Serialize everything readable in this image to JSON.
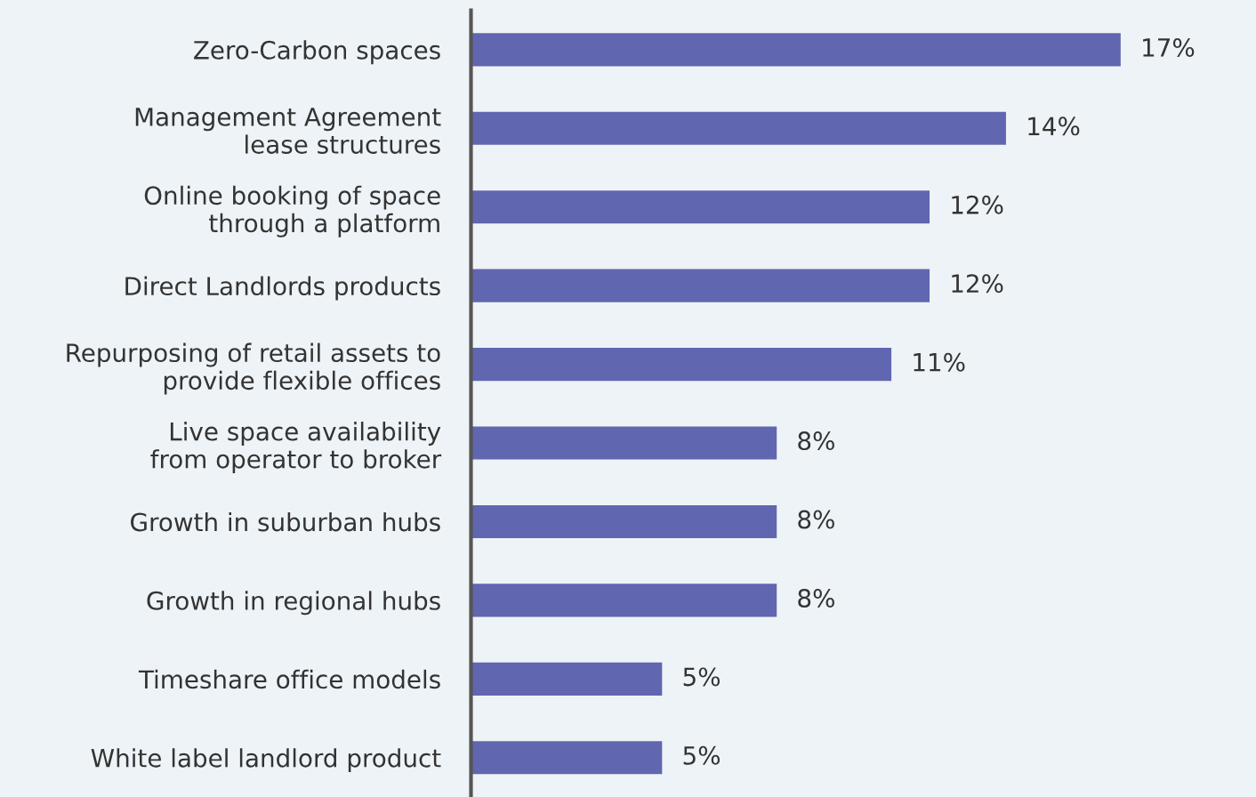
{
  "chart_data": {
    "type": "bar",
    "orientation": "horizontal",
    "categories": [
      "Zero-Carbon spaces",
      "Management Agreement\nlease structures",
      "Online booking of space\nthrough a platform",
      "Direct Landlords products",
      "Repurposing of retail assets to\nprovide flexible offices",
      "Live space availability\nfrom operator to broker",
      "Growth in suburban hubs",
      "Growth in regional hubs",
      "Timeshare office models",
      "White label landlord product"
    ],
    "values": [
      17,
      14,
      12,
      12,
      11,
      8,
      8,
      8,
      5,
      5
    ],
    "value_labels": [
      "17%",
      "14%",
      "12%",
      "12%",
      "11%",
      "8%",
      "8%",
      "8%",
      "5%",
      "5%"
    ],
    "color": "#6166b0",
    "grid": false,
    "legend": false
  }
}
